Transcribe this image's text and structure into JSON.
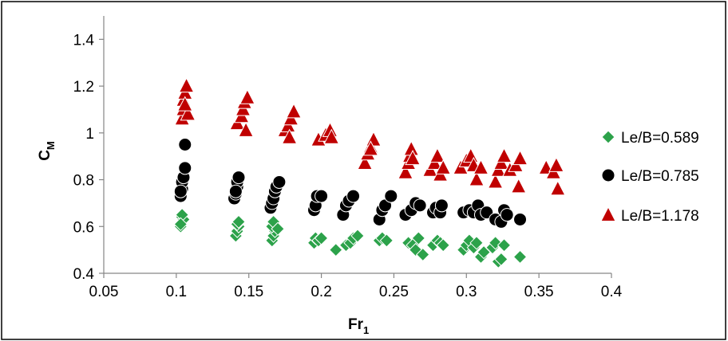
{
  "chart_data": {
    "type": "scatter",
    "xlabel": {
      "main": "Fr",
      "sub": "1"
    },
    "ylabel": {
      "main": "C",
      "sub": "M"
    },
    "xlim": [
      0.05,
      0.4
    ],
    "ylim": [
      0.4,
      1.5
    ],
    "x_ticks": [
      "0.05",
      "0.1",
      "0.15",
      "0.2",
      "0.25",
      "0.3",
      "0.35",
      "0.4"
    ],
    "y_ticks": [
      "0.4",
      "0.6",
      "0.8",
      "1",
      "1.2",
      "1.4"
    ],
    "x_tick_values": [
      0.05,
      0.1,
      0.15,
      0.2,
      0.25,
      0.3,
      0.35,
      0.4
    ],
    "y_tick_values": [
      0.4,
      0.6,
      0.8,
      1.0,
      1.2,
      1.4
    ],
    "grid": false,
    "legend_position": "right",
    "series": [
      {
        "name": "Le/B=0.589",
        "marker": "diamond",
        "color": "#2ca24a",
        "points": [
          [
            0.103,
            0.6
          ],
          [
            0.104,
            0.64
          ],
          [
            0.105,
            0.63
          ],
          [
            0.104,
            0.65
          ],
          [
            0.103,
            0.61
          ],
          [
            0.141,
            0.56
          ],
          [
            0.142,
            0.58
          ],
          [
            0.143,
            0.6
          ],
          [
            0.142,
            0.61
          ],
          [
            0.143,
            0.62
          ],
          [
            0.166,
            0.54
          ],
          [
            0.167,
            0.56
          ],
          [
            0.168,
            0.58
          ],
          [
            0.166,
            0.6
          ],
          [
            0.167,
            0.62
          ],
          [
            0.17,
            0.59
          ],
          [
            0.195,
            0.53
          ],
          [
            0.196,
            0.55
          ],
          [
            0.198,
            0.54
          ],
          [
            0.2,
            0.55
          ],
          [
            0.21,
            0.5
          ],
          [
            0.217,
            0.52
          ],
          [
            0.22,
            0.53
          ],
          [
            0.222,
            0.55
          ],
          [
            0.225,
            0.56
          ],
          [
            0.24,
            0.54
          ],
          [
            0.242,
            0.55
          ],
          [
            0.245,
            0.54
          ],
          [
            0.26,
            0.53
          ],
          [
            0.263,
            0.52
          ],
          [
            0.265,
            0.5
          ],
          [
            0.267,
            0.55
          ],
          [
            0.27,
            0.48
          ],
          [
            0.277,
            0.52
          ],
          [
            0.28,
            0.54
          ],
          [
            0.282,
            0.53
          ],
          [
            0.284,
            0.52
          ],
          [
            0.298,
            0.5
          ],
          [
            0.3,
            0.52
          ],
          [
            0.302,
            0.54
          ],
          [
            0.305,
            0.51
          ],
          [
            0.307,
            0.53
          ],
          [
            0.31,
            0.47
          ],
          [
            0.312,
            0.49
          ],
          [
            0.318,
            0.51
          ],
          [
            0.32,
            0.53
          ],
          [
            0.322,
            0.45
          ],
          [
            0.324,
            0.46
          ],
          [
            0.326,
            0.52
          ],
          [
            0.337,
            0.47
          ]
        ]
      },
      {
        "name": "Le/B=0.785",
        "marker": "circle",
        "color": "#000000",
        "points": [
          [
            0.103,
            0.73
          ],
          [
            0.104,
            0.76
          ],
          [
            0.104,
            0.79
          ],
          [
            0.105,
            0.81
          ],
          [
            0.106,
            0.85
          ],
          [
            0.106,
            0.95
          ],
          [
            0.103,
            0.75
          ],
          [
            0.14,
            0.72
          ],
          [
            0.141,
            0.74
          ],
          [
            0.142,
            0.77
          ],
          [
            0.142,
            0.79
          ],
          [
            0.143,
            0.81
          ],
          [
            0.141,
            0.75
          ],
          [
            0.165,
            0.68
          ],
          [
            0.166,
            0.7
          ],
          [
            0.167,
            0.72
          ],
          [
            0.168,
            0.75
          ],
          [
            0.169,
            0.77
          ],
          [
            0.171,
            0.79
          ],
          [
            0.195,
            0.67
          ],
          [
            0.196,
            0.69
          ],
          [
            0.197,
            0.73
          ],
          [
            0.2,
            0.73
          ],
          [
            0.215,
            0.65
          ],
          [
            0.217,
            0.69
          ],
          [
            0.219,
            0.71
          ],
          [
            0.222,
            0.73
          ],
          [
            0.24,
            0.63
          ],
          [
            0.242,
            0.67
          ],
          [
            0.244,
            0.69
          ],
          [
            0.248,
            0.73
          ],
          [
            0.258,
            0.65
          ],
          [
            0.262,
            0.67
          ],
          [
            0.265,
            0.7
          ],
          [
            0.268,
            0.69
          ],
          [
            0.277,
            0.66
          ],
          [
            0.279,
            0.68
          ],
          [
            0.282,
            0.66
          ],
          [
            0.283,
            0.69
          ],
          [
            0.298,
            0.66
          ],
          [
            0.302,
            0.67
          ],
          [
            0.305,
            0.66
          ],
          [
            0.308,
            0.69
          ],
          [
            0.31,
            0.65
          ],
          [
            0.314,
            0.66
          ],
          [
            0.32,
            0.63
          ],
          [
            0.324,
            0.62
          ],
          [
            0.326,
            0.67
          ],
          [
            0.328,
            0.65
          ],
          [
            0.337,
            0.63
          ]
        ]
      },
      {
        "name": "Le/B=1.178",
        "marker": "triangle",
        "color": "#c00000",
        "points": [
          [
            0.104,
            1.06
          ],
          [
            0.105,
            1.1
          ],
          [
            0.105,
            1.14
          ],
          [
            0.106,
            1.17
          ],
          [
            0.107,
            1.2
          ],
          [
            0.108,
            1.08
          ],
          [
            0.106,
            1.12
          ],
          [
            0.142,
            1.04
          ],
          [
            0.145,
            1.07
          ],
          [
            0.146,
            1.1
          ],
          [
            0.147,
            1.13
          ],
          [
            0.148,
            1.01
          ],
          [
            0.149,
            1.15
          ],
          [
            0.175,
            1.01
          ],
          [
            0.177,
            1.03
          ],
          [
            0.179,
            1.06
          ],
          [
            0.181,
            1.09
          ],
          [
            0.178,
            0.98
          ],
          [
            0.198,
            0.97
          ],
          [
            0.203,
            0.99
          ],
          [
            0.206,
            1.01
          ],
          [
            0.207,
            0.98
          ],
          [
            0.23,
            0.87
          ],
          [
            0.232,
            0.91
          ],
          [
            0.234,
            0.94
          ],
          [
            0.236,
            0.97
          ],
          [
            0.234,
            0.93
          ],
          [
            0.258,
            0.83
          ],
          [
            0.26,
            0.87
          ],
          [
            0.261,
            0.9
          ],
          [
            0.262,
            0.93
          ],
          [
            0.263,
            0.89
          ],
          [
            0.275,
            0.84
          ],
          [
            0.278,
            0.87
          ],
          [
            0.28,
            0.9
          ],
          [
            0.282,
            0.82
          ],
          [
            0.284,
            0.85
          ],
          [
            0.296,
            0.85
          ],
          [
            0.3,
            0.88
          ],
          [
            0.303,
            0.9
          ],
          [
            0.305,
            0.86
          ],
          [
            0.307,
            0.8
          ],
          [
            0.31,
            0.85
          ],
          [
            0.32,
            0.79
          ],
          [
            0.322,
            0.84
          ],
          [
            0.324,
            0.87
          ],
          [
            0.326,
            0.9
          ],
          [
            0.33,
            0.84
          ],
          [
            0.334,
            0.86
          ],
          [
            0.336,
            0.77
          ],
          [
            0.337,
            0.89
          ],
          [
            0.355,
            0.85
          ],
          [
            0.36,
            0.83
          ],
          [
            0.362,
            0.86
          ],
          [
            0.363,
            0.76
          ]
        ]
      }
    ]
  }
}
